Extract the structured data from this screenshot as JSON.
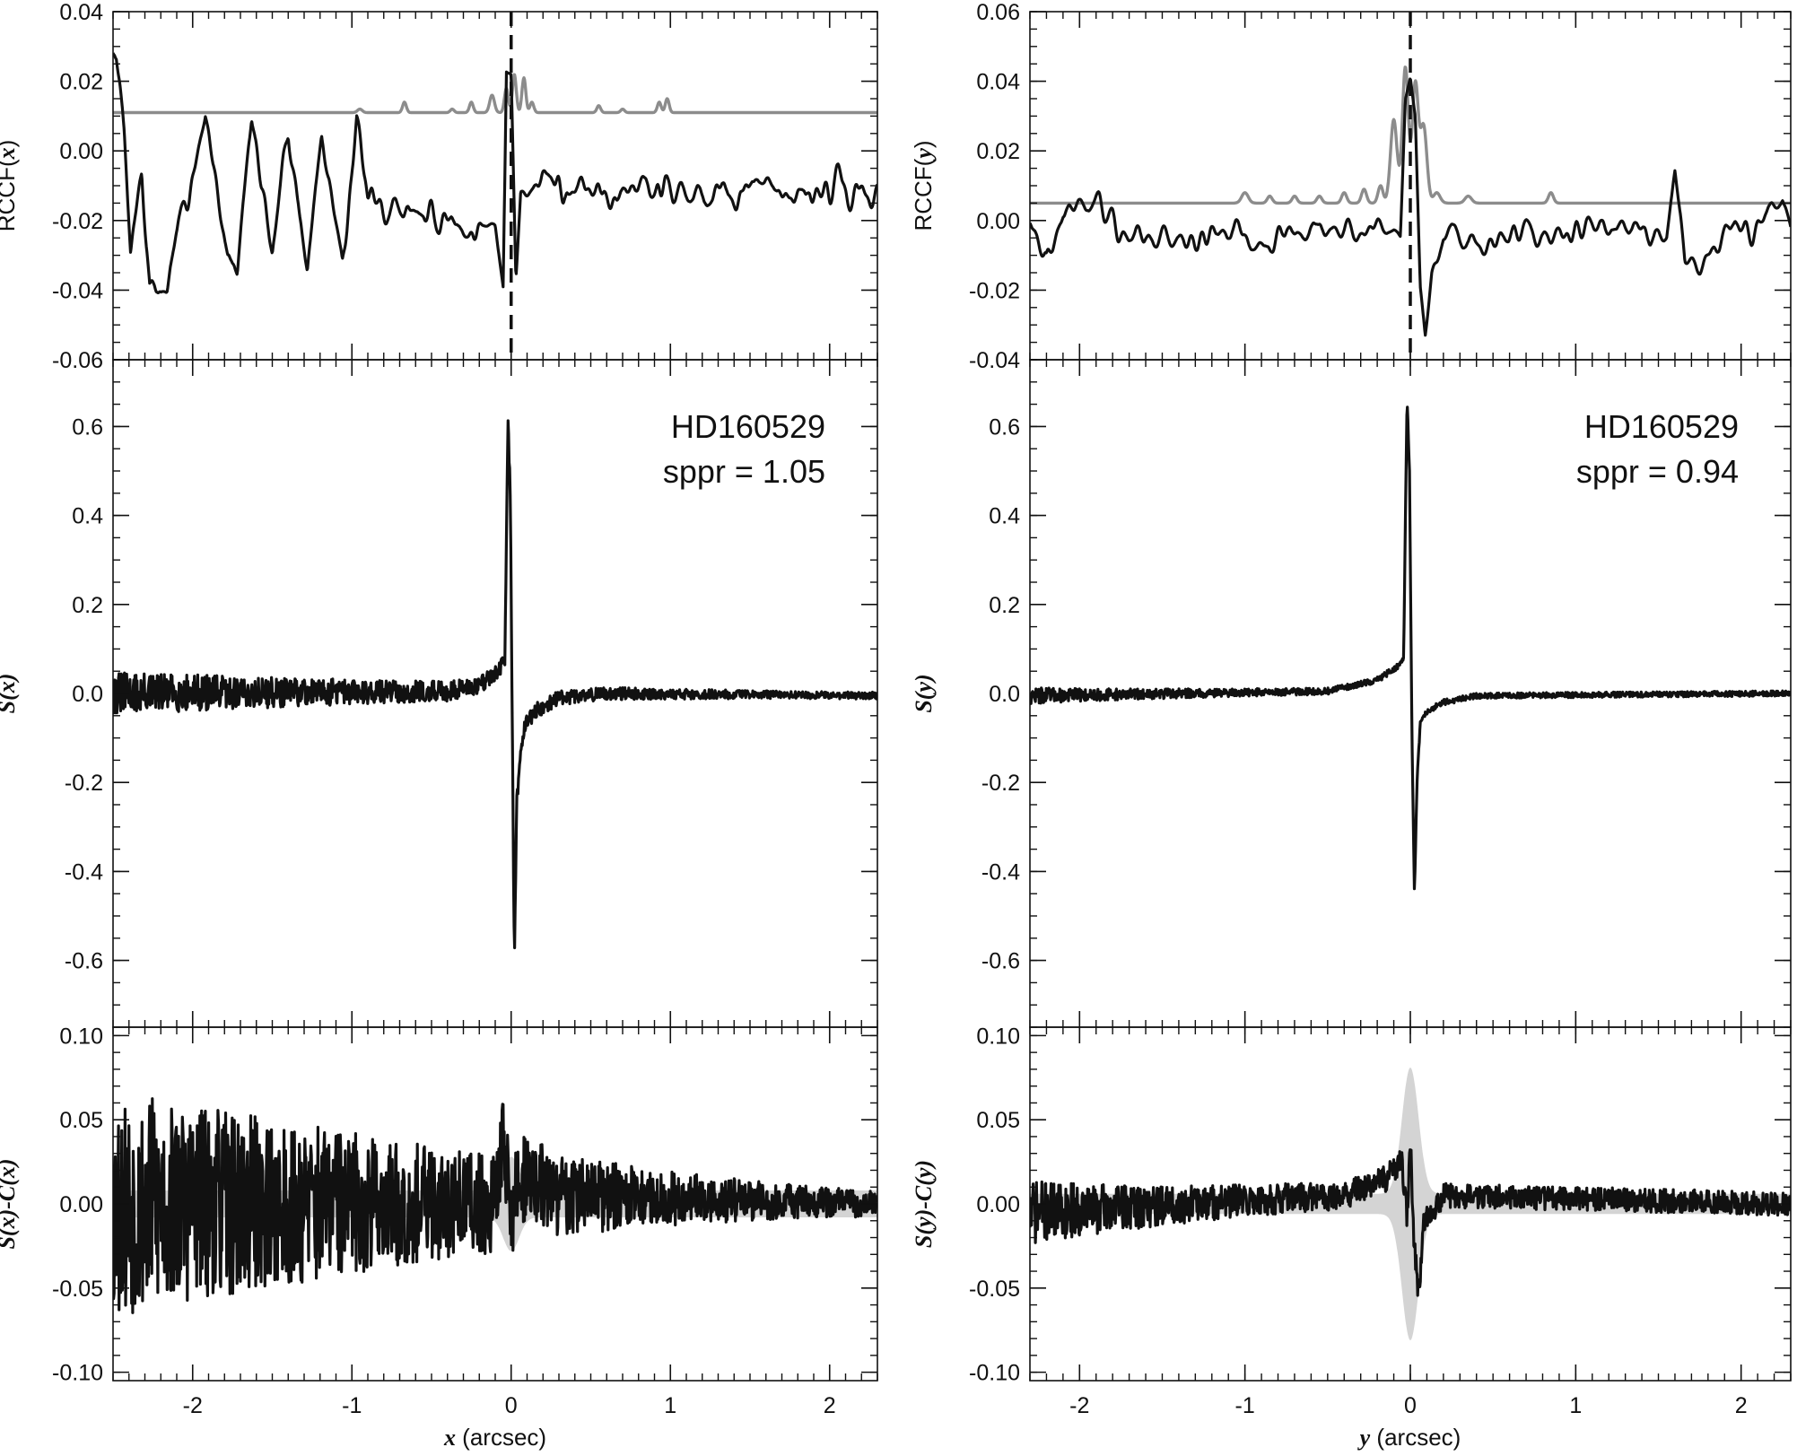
{
  "chart_data": [
    {
      "id": "rccf-x",
      "type": "line",
      "panel": "left-top",
      "ylabel_prefix": "RCCF(",
      "ylabel_var": "x",
      "ylabel_suffix": ")",
      "xlim": [
        -2.5,
        2.3
      ],
      "ylim": [
        -0.06,
        0.04
      ],
      "y_ticks": [
        -0.06,
        -0.04,
        -0.02,
        0.0,
        0.02,
        0.04
      ],
      "y_tick_labels": [
        "-0.06",
        "-0.04",
        "-0.02",
        "0.00",
        "0.02",
        "0.04"
      ],
      "y_minor_step": 0.005,
      "vline_x": 0.0,
      "series": [
        {
          "color": "#8c8c8c",
          "baseline": 0.011,
          "noise": 0.0,
          "peaks": [
            [
              -0.95,
              0.001,
              0.015
            ],
            [
              -0.67,
              0.003,
              0.012
            ],
            [
              -0.37,
              0.001,
              0.012
            ],
            [
              -0.25,
              0.003,
              0.012
            ],
            [
              -0.12,
              0.005,
              0.015
            ],
            [
              -0.03,
              0.007,
              0.012
            ],
            [
              0.02,
              0.011,
              0.012
            ],
            [
              0.08,
              0.01,
              0.012
            ],
            [
              0.13,
              0.003,
              0.012
            ],
            [
              0.55,
              0.002,
              0.012
            ],
            [
              0.7,
              0.001,
              0.012
            ],
            [
              0.93,
              0.003,
              0.012
            ],
            [
              0.98,
              0.004,
              0.012
            ]
          ]
        },
        {
          "color": "#111111",
          "baseline": -0.014,
          "noise": 0.008,
          "noise_cutoff": 0.3,
          "seed": 7,
          "smooth": 0.012,
          "anchors": [
            [
              -2.48,
              0.026
            ],
            [
              -2.43,
              0.005
            ],
            [
              -2.39,
              -0.027
            ],
            [
              -2.32,
              -0.006
            ],
            [
              -2.27,
              -0.041
            ],
            [
              -2.16,
              -0.039
            ],
            [
              -1.92,
              0.011
            ],
            [
              -1.78,
              -0.03
            ],
            [
              -1.72,
              -0.036
            ],
            [
              -1.63,
              0.009
            ],
            [
              -1.5,
              -0.028
            ],
            [
              -1.4,
              0.006
            ],
            [
              -1.28,
              -0.033
            ],
            [
              -1.19,
              0.004
            ],
            [
              -1.06,
              -0.029
            ],
            [
              -0.97,
              0.007
            ],
            [
              -0.9,
              -0.015
            ],
            [
              -0.1,
              -0.022
            ],
            [
              -0.05,
              -0.039
            ],
            [
              -0.03,
              0.023
            ],
            [
              0.0,
              0.022
            ],
            [
              0.03,
              -0.037
            ],
            [
              0.06,
              -0.012
            ],
            [
              0.3,
              -0.01
            ],
            [
              2.3,
              -0.012
            ]
          ]
        }
      ]
    },
    {
      "id": "rccf-y",
      "type": "line",
      "panel": "right-top",
      "ylabel_prefix": "RCCF(",
      "ylabel_var": "y",
      "ylabel_suffix": ")",
      "xlim": [
        -2.3,
        2.3
      ],
      "ylim": [
        -0.04,
        0.06
      ],
      "y_ticks": [
        -0.04,
        -0.02,
        0.0,
        0.02,
        0.04,
        0.06
      ],
      "y_tick_labels": [
        "-0.04",
        "-0.02",
        "0.00",
        "0.02",
        "0.04",
        "0.06"
      ],
      "y_minor_step": 0.005,
      "vline_x": 0.0,
      "series": [
        {
          "color": "#8c8c8c",
          "baseline": 0.005,
          "noise": 0.0,
          "peaks": [
            [
              -1.0,
              0.003,
              0.02
            ],
            [
              -0.85,
              0.002,
              0.015
            ],
            [
              -0.7,
              0.002,
              0.015
            ],
            [
              -0.55,
              0.002,
              0.015
            ],
            [
              -0.4,
              0.003,
              0.015
            ],
            [
              -0.28,
              0.004,
              0.015
            ],
            [
              -0.18,
              0.005,
              0.015
            ],
            [
              -0.1,
              0.024,
              0.02
            ],
            [
              -0.03,
              0.039,
              0.018
            ],
            [
              0.03,
              0.034,
              0.018
            ],
            [
              0.08,
              0.022,
              0.02
            ],
            [
              0.16,
              0.003,
              0.02
            ],
            [
              0.35,
              0.002,
              0.02
            ],
            [
              0.85,
              0.003,
              0.015
            ]
          ]
        },
        {
          "color": "#111111",
          "baseline": -0.002,
          "noise": 0.006,
          "noise_cutoff": 0.25,
          "seed": 19,
          "smooth": 0.012,
          "anchors": [
            [
              -2.3,
              0.004
            ],
            [
              -2.2,
              -0.013
            ],
            [
              -2.1,
              0.001
            ],
            [
              -1.95,
              0.007
            ],
            [
              -1.7,
              -0.005
            ],
            [
              -0.1,
              -0.002
            ],
            [
              -0.06,
              -0.004
            ],
            [
              -0.03,
              0.035
            ],
            [
              0.0,
              0.041
            ],
            [
              0.03,
              0.03
            ],
            [
              0.06,
              -0.02
            ],
            [
              0.09,
              -0.034
            ],
            [
              0.13,
              -0.018
            ],
            [
              0.2,
              -0.005
            ],
            [
              1.55,
              -0.004
            ],
            [
              1.6,
              0.013
            ],
            [
              1.66,
              -0.012
            ],
            [
              2.25,
              0.002
            ],
            [
              2.3,
              -0.007
            ]
          ]
        }
      ]
    },
    {
      "id": "s-x",
      "type": "line",
      "panel": "left-middle",
      "ylabel_var": "S(x)",
      "xlim": [
        -2.5,
        2.3
      ],
      "ylim": [
        -0.75,
        0.75
      ],
      "y_ticks": [
        -0.6,
        -0.4,
        -0.2,
        0.0,
        0.2,
        0.4,
        0.6
      ],
      "y_tick_labels": [
        "-0.6",
        "-0.4",
        "-0.2",
        "0.0",
        "0.2",
        "0.4",
        "0.6"
      ],
      "y_minor_step": 0.05,
      "annotations": [
        "HD160529",
        "sppr = 1.05"
      ],
      "series": [
        {
          "color": "#111111",
          "baseline": 0.0,
          "noise": 0.04,
          "noise_falloff": 1.2,
          "noise_floor": 0.008,
          "seed": 31,
          "smooth": 0.0,
          "anchors": [
            [
              -2.5,
              0.0
            ],
            [
              -0.4,
              0.005
            ],
            [
              -0.2,
              0.02
            ],
            [
              -0.08,
              0.05
            ],
            [
              -0.04,
              0.07
            ],
            [
              -0.02,
              0.61
            ],
            [
              -0.005,
              0.45
            ],
            [
              0.01,
              -0.2
            ],
            [
              0.02,
              -0.6
            ],
            [
              0.035,
              -0.25
            ],
            [
              0.06,
              -0.12
            ],
            [
              0.09,
              -0.07
            ],
            [
              0.15,
              -0.04
            ],
            [
              0.3,
              -0.01
            ],
            [
              0.6,
              0.0
            ],
            [
              2.3,
              -0.005
            ]
          ]
        }
      ]
    },
    {
      "id": "s-y",
      "type": "line",
      "panel": "right-middle",
      "ylabel_var": "S(y)",
      "xlim": [
        -2.3,
        2.3
      ],
      "ylim": [
        -0.75,
        0.75
      ],
      "y_ticks": [
        -0.6,
        -0.4,
        -0.2,
        0.0,
        0.2,
        0.4,
        0.6
      ],
      "y_tick_labels": [
        "-0.6",
        "-0.4",
        "-0.2",
        "0.0",
        "0.2",
        "0.4",
        "0.6"
      ],
      "y_minor_step": 0.05,
      "annotations": [
        "HD160529",
        "sppr = 0.94"
      ],
      "series": [
        {
          "color": "#111111",
          "baseline": 0.0,
          "noise": 0.012,
          "noise_falloff": 3.0,
          "noise_floor": 0.006,
          "seed": 47,
          "smooth": 0.0,
          "anchors": [
            [
              -2.3,
              -0.005
            ],
            [
              -0.5,
              0.005
            ],
            [
              -0.2,
              0.03
            ],
            [
              -0.08,
              0.06
            ],
            [
              -0.04,
              0.08
            ],
            [
              -0.02,
              0.67
            ],
            [
              -0.005,
              0.5
            ],
            [
              0.01,
              -0.1
            ],
            [
              0.025,
              -0.45
            ],
            [
              0.04,
              -0.2
            ],
            [
              0.06,
              -0.07
            ],
            [
              0.1,
              -0.04
            ],
            [
              0.2,
              -0.02
            ],
            [
              0.4,
              -0.005
            ],
            [
              2.3,
              0.0
            ]
          ]
        }
      ]
    },
    {
      "id": "resid-x",
      "type": "line",
      "panel": "left-bottom",
      "ylabel_var": "S(x)-C(x)",
      "xlabel_var": "x",
      "xlabel_text": " (arcsec)",
      "xlim": [
        -2.5,
        2.3
      ],
      "ylim": [
        -0.105,
        0.105
      ],
      "y_ticks": [
        -0.1,
        -0.05,
        0.0,
        0.05,
        0.1
      ],
      "y_tick_labels": [
        "-0.10",
        "-0.05",
        "0.00",
        "0.05",
        "0.10"
      ],
      "y_minor_step": 0.01,
      "x_ticks": [
        -2,
        -1,
        0,
        1,
        2
      ],
      "x_tick_labels": [
        "-2",
        "-1",
        "0",
        "1",
        "2"
      ],
      "x_minor_step": 0.1,
      "band_color": "#d4d4d4",
      "band_halfwidth": 0.008,
      "band_peak": 0.02,
      "series": [
        {
          "color": "#111111",
          "baseline": 0.0,
          "noise": 0.06,
          "noise_falloff": 1.0,
          "noise_floor": 0.008,
          "seed": 53,
          "smooth": 0.0,
          "anchors": [
            [
              -2.5,
              0.0
            ],
            [
              -0.1,
              0.0
            ],
            [
              -0.05,
              0.04
            ],
            [
              -0.02,
              0.02
            ],
            [
              0.0,
              -0.02
            ],
            [
              0.03,
              0.01
            ],
            [
              0.1,
              0.015
            ],
            [
              0.3,
              0.005
            ],
            [
              2.3,
              0.0
            ]
          ]
        }
      ]
    },
    {
      "id": "resid-y",
      "type": "line",
      "panel": "right-bottom",
      "ylabel_var": "S(y)-C(y)",
      "xlabel_var": "y",
      "xlabel_text": " (arcsec)",
      "xlim": [
        -2.3,
        2.3
      ],
      "ylim": [
        -0.105,
        0.105
      ],
      "y_ticks": [
        -0.1,
        -0.05,
        0.0,
        0.05,
        0.1
      ],
      "y_tick_labels": [
        "-0.10",
        "-0.05",
        "0.00",
        "0.05",
        "0.10"
      ],
      "y_minor_step": 0.01,
      "x_ticks": [
        -2,
        -1,
        0,
        1,
        2
      ],
      "x_tick_labels": [
        "-2",
        "-1",
        "0",
        "1",
        "2"
      ],
      "x_minor_step": 0.1,
      "band_color": "#d4d4d4",
      "band_halfwidth": 0.006,
      "band_peak": 0.075,
      "series": [
        {
          "color": "#111111",
          "baseline": 0.0,
          "noise": 0.012,
          "noise_falloff": 3.0,
          "noise_floor": 0.007,
          "seed": 71,
          "smooth": 0.0,
          "anchors": [
            [
              -2.3,
              -0.005
            ],
            [
              -0.4,
              0.005
            ],
            [
              -0.15,
              0.015
            ],
            [
              -0.05,
              0.025
            ],
            [
              -0.02,
              -0.01
            ],
            [
              0.0,
              0.04
            ],
            [
              0.02,
              -0.02
            ],
            [
              0.05,
              -0.055
            ],
            [
              0.08,
              -0.01
            ],
            [
              0.2,
              0.005
            ],
            [
              2.3,
              0.0
            ]
          ]
        }
      ]
    }
  ]
}
